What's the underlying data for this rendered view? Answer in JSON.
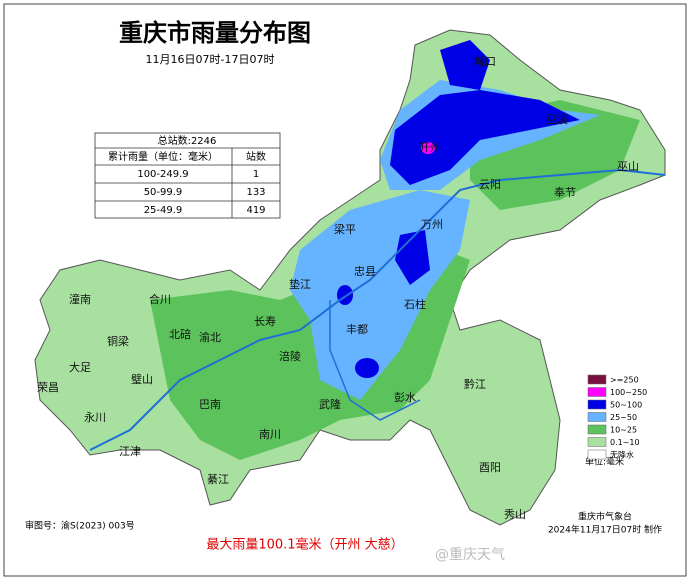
{
  "header": {
    "title": "重庆市雨量分布图",
    "subtitle": "11月16日07时-17日07时"
  },
  "table": {
    "total": "总站数:2246",
    "columns": [
      "累计雨量（单位：毫米）",
      "站数"
    ],
    "rows": [
      [
        "100-249.9",
        "1"
      ],
      [
        "50-99.9",
        "133"
      ],
      [
        "25-49.9",
        "419"
      ]
    ]
  },
  "places": [
    "城口",
    "巫溪",
    "巫山",
    "开州",
    "云阳",
    "奉节",
    "万州",
    "梁平",
    "忠县",
    "垫江",
    "石柱",
    "长寿",
    "丰都",
    "涪陵",
    "潼南",
    "合川",
    "北碚",
    "渝北",
    "铜梁",
    "璧山",
    "大足",
    "荣昌",
    "永川",
    "江津",
    "巴南",
    "南川",
    "綦江",
    "武隆",
    "彭水",
    "黔江",
    "酉阳",
    "秀山"
  ],
  "legend": {
    "items": [
      {
        "label": ">=250",
        "color": "#7a1040"
      },
      {
        "label": "100~250",
        "color": "#ff00ff"
      },
      {
        "label": "50~100",
        "color": "#0000e6"
      },
      {
        "label": "25~50",
        "color": "#66b3ff"
      },
      {
        "label": "10~25",
        "color": "#5cc25c"
      },
      {
        "label": "0.1~10",
        "color": "#a8e0a0"
      },
      {
        "label": "无降水",
        "color": "#ffffff"
      }
    ],
    "unit": "单位:毫米"
  },
  "footer": {
    "agency": "重庆市气象台",
    "time": "2024年11月17日07时 制作",
    "approval": "审图号：渝S(2023) 003号",
    "max": "最大雨量100.1毫米（开州 大慈）",
    "watermark": "@重庆天气"
  }
}
